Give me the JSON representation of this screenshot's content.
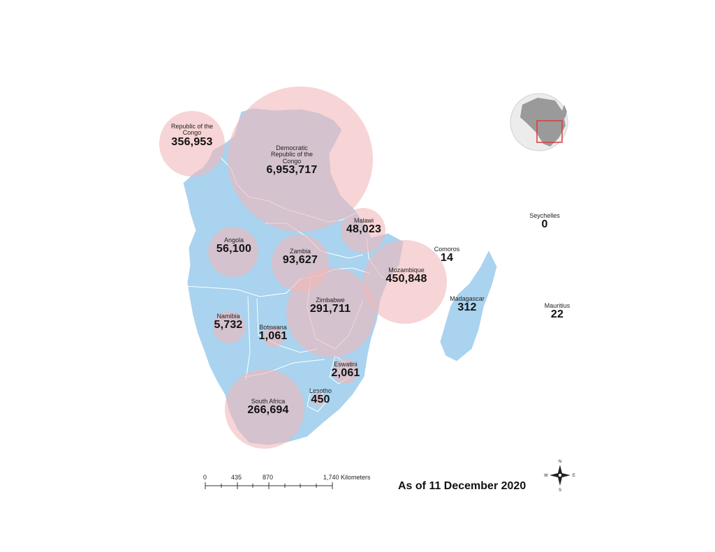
{
  "date_note": "As of 11 December 2020",
  "colors": {
    "land": "#a9d3ee",
    "bubble": "#f2b7b9",
    "border": "#ffffff",
    "inset_frame": "#e03a3a"
  },
  "countries": [
    {
      "name": "Republic of the Congo",
      "value": "356,953"
    },
    {
      "name": "Democratic Republic of the Congo",
      "value": "6,953,717"
    },
    {
      "name": "Malawi",
      "value": "48,023"
    },
    {
      "name": "Angola",
      "value": "56,100"
    },
    {
      "name": "Zambia",
      "value": "93,627"
    },
    {
      "name": "Comoros",
      "value": "14"
    },
    {
      "name": "Mozambique",
      "value": "450,848"
    },
    {
      "name": "Zimbabwe",
      "value": "291,711"
    },
    {
      "name": "Madagascar",
      "value": "312"
    },
    {
      "name": "Namibia",
      "value": "5,732"
    },
    {
      "name": "Botswana",
      "value": "1,061"
    },
    {
      "name": "Eswatini",
      "value": "2,061"
    },
    {
      "name": "Lesotho",
      "value": "450"
    },
    {
      "name": "South Africa",
      "value": "266,694"
    },
    {
      "name": "Seychelles",
      "value": "0"
    },
    {
      "name": "Mauritius",
      "value": "22"
    }
  ],
  "scale_bar": {
    "ticks": [
      "0",
      "435",
      "870",
      "1,740 Kilometers"
    ]
  },
  "compass": {
    "n": "N",
    "s": "S",
    "e": "E",
    "w": "W"
  }
}
